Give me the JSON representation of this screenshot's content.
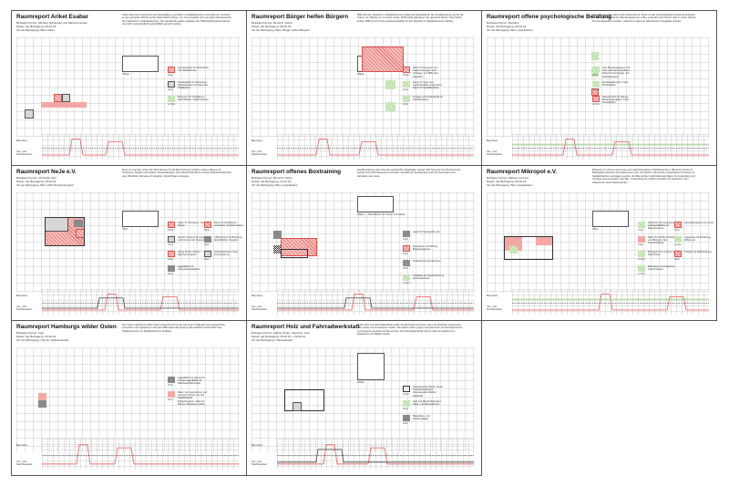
{
  "panels": [
    {
      "title": "Raumreport Ariket Esabar",
      "meta": [
        "Befragte Person: Michael Schweiger und Marita Kramski",
        "Datum der Befragung: 20.02.24",
        "Ort der Befragung: Büro Ariket"
      ],
      "desc": "Ariket sieht bevor wenig bis viel Veranstaltung und Platz im Stadtteilzentrum vorzunehmen. Anhand so der genutzten Fläche werde Ariket Fläche leisten. Am mit entwickelt sich eine helle Wertebereiche den Standorte im Stadtteilzentrum. Die Handwerde geben teilgeben der Öffentlichkeitsarbeit dienen und nicht (ausschließlich) geschäftlich genutzt werden.",
      "scale": "125qm",
      "legend": [
        {
          "text": "Gemeinsamer für Workshops / für Schülerinnen",
          "size": "50qm",
          "style": "redh"
        },
        {
          "text": "Denkerläufer für Werkzeug / Werkstattraum für Ariket und Prakikanten",
          "size": "20qm",
          "style": "greyl"
        },
        {
          "text": "Büroraum für Verwaltung / abschließbar / täglich besetzt",
          "size": "12,5qm",
          "style": "greenh"
        }
      ],
      "usage": "Benutzen",
      "before_after": [
        "Vor- und",
        "Nachbereiten"
      ]
    },
    {
      "title": "Raumreport Bürger helfen Bürgern",
      "meta": [
        "Befragte Person: Bernd P. Kettel",
        "Datum der Befragung: 08.02.24",
        "Ort der Befragung: Büro Bürger helfen Bürgern"
      ],
      "desc": "BhB wird den Standort im Stadtteilzentrum belegt als Arbeitsfeld für die Sozialberatung und für die Nutzer von Flächen im Innenhof nutzen. BhB würde allerdig an der gesuchte Fläche zwei Fläche leisten. BhB ist eine hohe wertbeantwortlich für den Standort im Stadtteilzentrum wichtig.",
      "scale": "250qm",
      "legend": [
        {
          "text": "Raum für Konzerte und Feste / Lesungen und Vorträge / von BhB oder Nachbarn",
          "size": "125qm",
          "style": "redh"
        },
        {
          "text": "Raum für Orga. des interkulturellen Austauschs / Raum für Sozialberatung",
          "size": "40qm",
          "style": "greenh"
        },
        {
          "text": "Empfang und Anlaufstelle für Sozialberatung",
          "size": "25qm",
          "style": "greenh"
        }
      ],
      "usage": "Benutzen",
      "before_after": [
        "Vor- und",
        "Nachbereiten"
      ]
    },
    {
      "title": "Raumreport offene psychologische Beratung",
      "meta": [
        "Befragte Person: Barbara",
        "Datum der Befragung: 20.02.24",
        "Ort der Befragung: Büro projektleben"
      ],
      "desc": "Fokusfinnen sollen diese tiefe beobachtet im Sinne an der psychologischen beratung betrieben können. Die persönlichen Beratungsthemen sollen entweder nach Termin oder in einem offenen Format abgehalten werden. Jederzeit in etwa ein Wartebereich eingeplant werden.",
      "scale": "",
      "legend": [
        {
          "text": "zwei Beratungsräume / für eine und zwei Gespräche / Platz für Psychologin und Sozialarbeiterin",
          "size": "20qm",
          "style": "greenh"
        },
        {
          "text": "Empfangsbereich / hohe Privatsphäre",
          "size": "12,5qm",
          "style": "greenh"
        },
        {
          "text": "Wartebereich für offenes Beratungsangebot / hohe Privatsphäre",
          "size": "12,5qm",
          "style": "redh"
        }
      ],
      "usage": "Benutzen",
      "before_after": [
        "Vor- und",
        "Nachbereiten"
      ]
    },
    {
      "title": "Raumreport NeJe e.V.",
      "meta": [
        "Befragte Person: Christelle Vela",
        "Datum der Befragung: 16.02.24",
        "Ort der Befragung: Büro ANVI Rothenburgsort"
      ],
      "desc": "NeJe e.V. benutzt neben den Büroräumen für die Beschichtung zeitliche weitere Räume für Tanzkurse, Stadien und weitere Veranstaltungen. Das effizienteste Büros soll als Nachbarschaft über eine öffentliche Terrasse mit Angebot- Sprachfolgen erzeugen.",
      "scale": "75qm",
      "legend": [
        {
          "text": "Raum für Tanzkurse / feste Fläche",
          "size": "100qm",
          "style": "redh"
        },
        {
          "text": "Raum für Workshops / unbefristet mit Tanzmodulen",
          "size": "50qm",
          "style": "redh"
        },
        {
          "text": "Wechtl. Terrasse für Ausgabe und Konsum der Speisen",
          "size": "75qm",
          "style": "greyl"
        },
        {
          "text": "2 Büroräume für Beratung / abschließbar / Angebot",
          "size": "20qm",
          "style": "greyd"
        },
        {
          "text": "offene Küche / Bistro / tägliches Angebot",
          "size": "20qm",
          "style": "redh"
        },
        {
          "text": "Aufbewahrsraum ohne Konsumierung",
          "size": "20qm",
          "style": "greyl"
        },
        {
          "text": "Lagerfläche für Veranstaltungsfläche",
          "size": "20qm",
          "style": "greyd"
        }
      ],
      "usage": "Benutzen",
      "before_after": [
        "Vor- und",
        "Nachbereiten"
      ]
    },
    {
      "title": "Raumreport offenes Boxtraining",
      "meta": [
        "Befragte Person: Bernd P. Kettel",
        "Datum der Befragung: 14.02.24",
        "Ort der Befragung: Büro projektleben"
      ],
      "desc": "Das Boxtraining soll mehrmals wöchentlich abgehalten werden. Bei Terminen am Wochenende werden auch Zuschauerinnen erwartet, weshalb der Sportbereich auch für Zuschauer kann darstellen was muss.",
      "scale": "180qm",
      "scale_text": "Raumfläche zum boxen und trainen",
      "legend": [
        {
          "text": "Lager für Sportgeräte, etc.",
          "size": "20qm",
          "style": "greyd"
        },
        {
          "text": "Sporthaus / Vorrichtung Bewegungsraum",
          "size": "20qm",
          "style": "redh"
        },
        {
          "text": "Umkleide für Sportlerinnen",
          "size": "20qm",
          "style": "chk"
        },
        {
          "text": "Umkleidg. für Sportlerinnen & Zuschauerinnen",
          "size": "12,5qm",
          "style": "greenh"
        }
      ],
      "usage": "Benutzen",
      "before_after": [
        "Vor- und",
        "Nachbereiten"
      ]
    },
    {
      "title": "Raumreport Mikropol e.V.",
      "meta": [
        "Befragte Person: Marisa und Lisa",
        "Datum der Befragung: 09.02.24",
        "Ort der Befragung: Büro projektleben"
      ],
      "desc": "Mikropol e.V. will ein autonomen und selbstverwalteten Stadtteilzentrum. Mikropol möchte im Bedingtheit zwischen den Akteurinnen sein und damit in die bereits entstandenen Prozesse im Stadtteilzentrum einsteigen werden. Ein Bar soll der multifunktionale Raum für Ausstellung und Vorträge genutzt werden. Der Bar-, Küchenbereich mit Bar soll Raum für Austausch, den Akteurinnen auch belebt werden.",
      "scale": "75qm",
      "legend": [
        {
          "text": "Fläche für die Gartengruppe / Außenkohlfläche für Besucherinnen",
          "size": "75qm",
          "style": "greenh"
        },
        {
          "text": "Ausstellungsraum für Kunst",
          "size": "25qm",
          "style": "redh"
        },
        {
          "text": "Raum für die Bar betrieben von Mikropol / kein Konsumzwang",
          "size": "75qm",
          "style": "red"
        },
        {
          "text": "Lagerraum für Werkzeug, Möbel, etc.",
          "size": "12,5qm",
          "style": "greenh"
        },
        {
          "text": "Bindegeld zum sichern des Nutzerinnen",
          "size": "12,5qm",
          "style": "greenh"
        },
        {
          "text": "Toiletten für Barbewirtung",
          "size": "20qm",
          "style": "redh"
        },
        {
          "text": "Mehrraum zum treppenen und ferrutieren",
          "size": "12,5qm",
          "style": "greenh"
        }
      ],
      "usage": "Benutzen",
      "before_after": [
        "Vor- und",
        "Nachbereiten"
      ]
    },
    {
      "title": "Raumreport Hamburgs wilder Osten",
      "meta": [
        "Befragte Person: Inge",
        "Datum der Befragung: 23.02.24",
        "Ort der Befragung: Hof der Volkswerkstoff"
      ],
      "desc": "Der Verein Hamburgs wilder Osten wünscht sich für den Ort einen Treffpunkt zum austauschen, vernetzen und organisieren. Die seit 1986 agierende Gruppe will zusätzlich wöchentlich das Stadtteilzentrum im Stadtteilzentrum abhalten.",
      "scale": "",
      "legend": [
        {
          "text": "Lagerfläche für das Archiv und als Lagerfläche für Nachbarschaftsmöbel",
          "size": "20qm",
          "style": "greyd"
        },
        {
          "text": "Raum zum besprechen und vernetzen / Raum für das Stadtteilarchiv Rothenburgsort / offen für alle die mitmachen wollen",
          "size": "20qm",
          "style": "red"
        }
      ],
      "usage": "Benutzen",
      "before_after": [
        "Vor- und",
        "Nachbereiten"
      ]
    },
    {
      "title": "Raumreport Holz und Fahrradwerkstatt",
      "meta": [
        "Befragte Person: Marlies Peter, Ingeborg, Inge",
        "Datum der Befragung: 16.02.24 + 29.02.24",
        "Ort der Befragung: Holzwerkstatt"
      ],
      "desc": "In der Holz und Fahrradwerkstatt sollen die Menschen kommen, wenn sie Rauchen, Reparieren, oder etwas neu konstruieren wollen. Die Fläche sollen gegen und Geld auch von Einzelpersonen und Gruppen gemietet werden können. Die Fahrradwerkstatt soll ein offenes Angebot zum Reparieren von Rädern bieten.",
      "scale": "200qm",
      "legend": [
        {
          "text": "überwiegende Fläche / keine Terrassennutzung / überwiegende Fläche / dauerhaft",
          "size": "200qm",
          "style": "outline"
        },
        {
          "text": "Holz und Metall Werkstatt / Säge- und Werkstattraum",
          "size": "25qm",
          "style": "greenh"
        },
        {
          "text": "Materialien- und Werkzeuglager",
          "size": "20qm",
          "style": "greyd"
        }
      ],
      "usage": "Benutzen",
      "before_after": [
        "Vor- und",
        "Nachbereiten"
      ]
    }
  ],
  "colors": {
    "red": "#e76f6c",
    "green": "#8ccb71",
    "grey": "#8a8a8a",
    "grid": "#c8c8c8"
  }
}
